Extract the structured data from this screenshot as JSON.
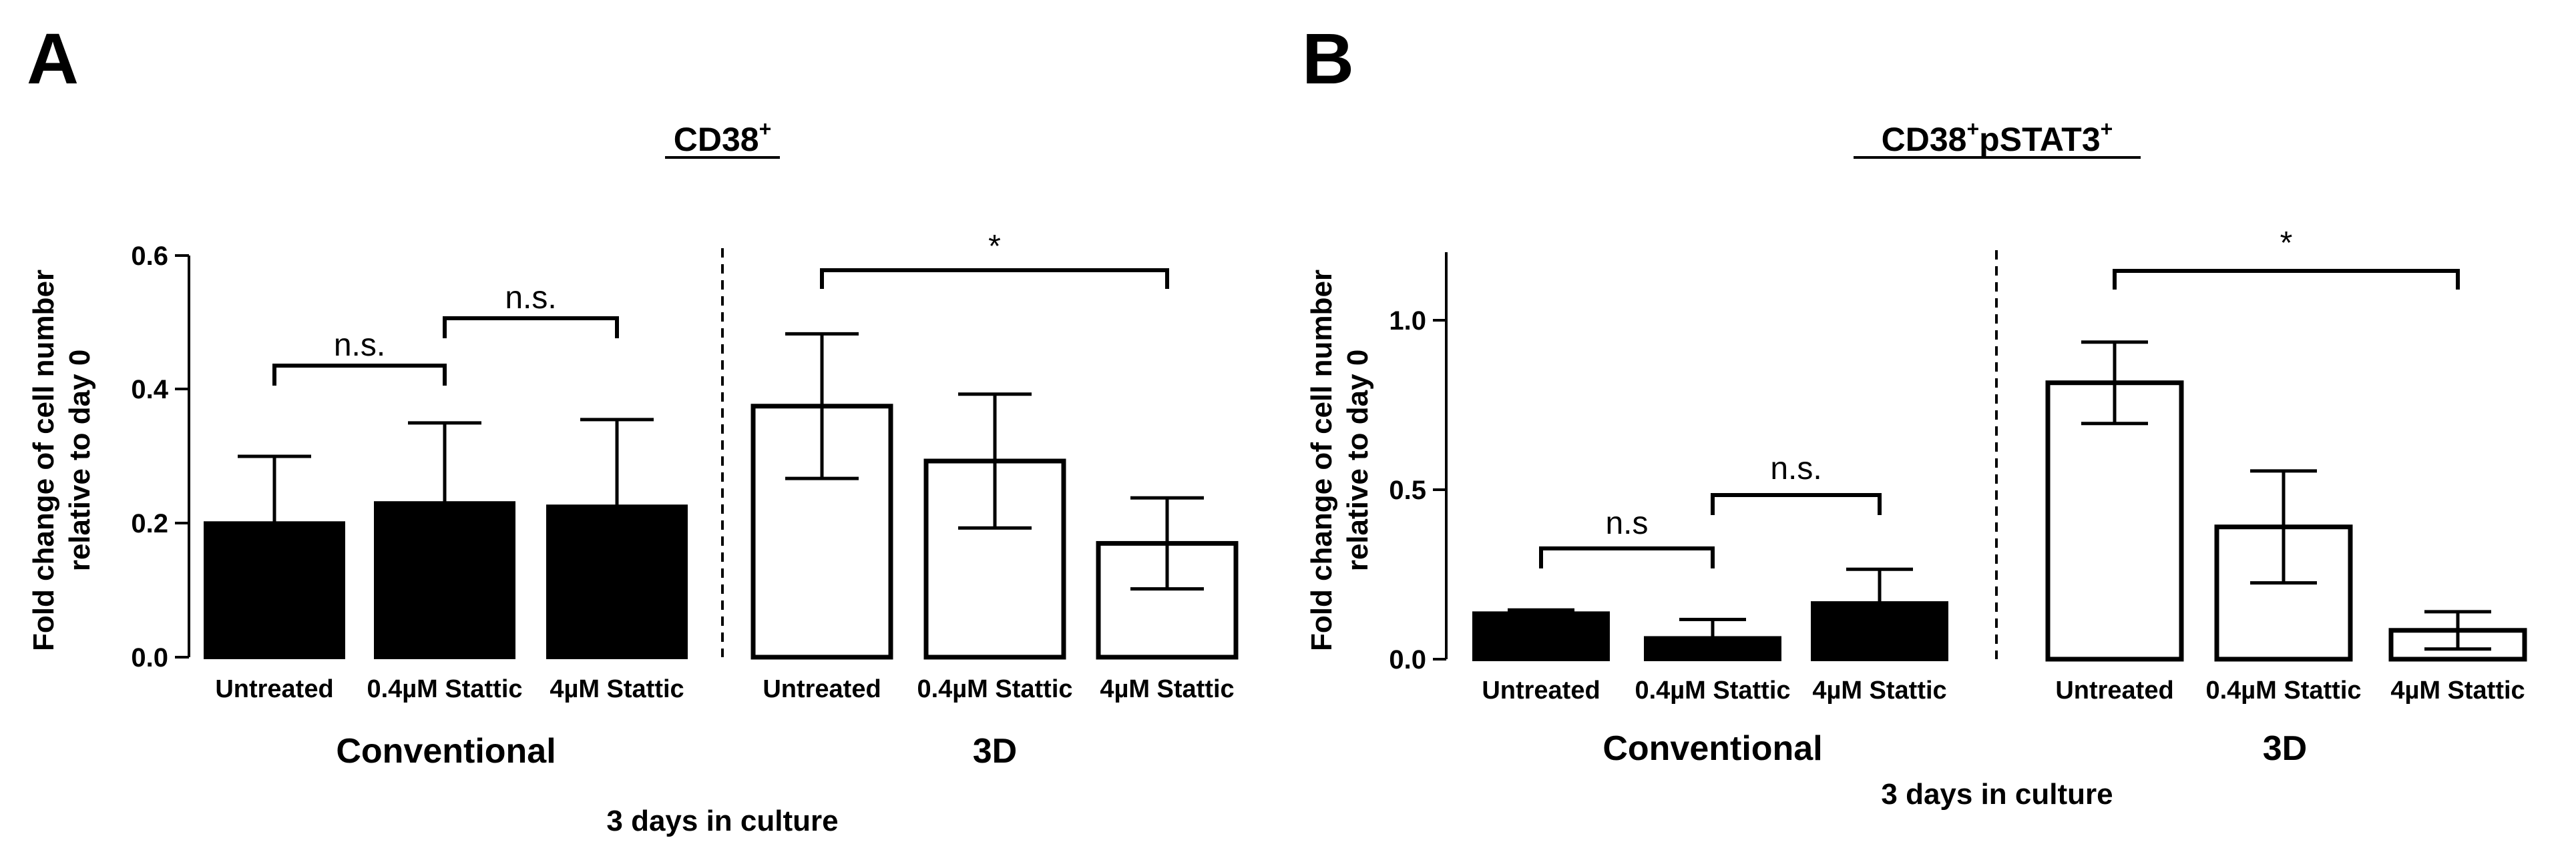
{
  "chart_data": [
    {
      "panel": "A",
      "type": "bar",
      "title": "CD38",
      "title_superscript": "+",
      "ylabel_line1": "Fold change of cell number",
      "ylabel_line2": "relative to day 0",
      "xlabel": "3 days in culture",
      "ylim": [
        0,
        0.6
      ],
      "yticks": [
        0.0,
        0.2,
        0.4,
        0.6
      ],
      "ytick_labels": [
        "0.0",
        "0.2",
        "0.4",
        "0.6"
      ],
      "groups": [
        {
          "label": "Conventional",
          "style": "filled",
          "categories": [
            "Untreated",
            "0.4µM Stattic",
            "4µM Stattic"
          ],
          "values": [
            0.2,
            0.23,
            0.225
          ],
          "errors": [
            0.1,
            0.12,
            0.13
          ],
          "error_direction": "up"
        },
        {
          "label": "3D",
          "style": "open",
          "categories": [
            "Untreated",
            "0.4µM Stattic",
            "4µM Stattic"
          ],
          "values": [
            0.375,
            0.293,
            0.17
          ],
          "errors": [
            0.108,
            0.1,
            0.068
          ],
          "error_direction": "both"
        }
      ],
      "annotations": [
        {
          "text": "n.s.",
          "from": 0,
          "to": 1
        },
        {
          "text": "n.s.",
          "from": 1,
          "to": 2
        },
        {
          "text": "*",
          "from": 3,
          "to": 5
        }
      ]
    },
    {
      "panel": "B",
      "type": "bar",
      "title": "CD38",
      "title_superscript": "+",
      "title_suffix": "pSTAT3",
      "title_suffix_superscript": "+",
      "ylabel_line1": "Fold change of cell number",
      "ylabel_line2": "relative to day 0",
      "xlabel": "3 days in culture",
      "ylim": [
        0,
        1.2
      ],
      "yticks": [
        0.0,
        0.5,
        1.0
      ],
      "ytick_labels": [
        "0.0",
        "0.5",
        "1.0"
      ],
      "groups": [
        {
          "label": "Conventional",
          "style": "filled",
          "categories": [
            "Untreated",
            "0.4µM Stattic",
            "4µM Stattic"
          ],
          "values": [
            0.135,
            0.062,
            0.165
          ],
          "errors": [
            0.01,
            0.055,
            0.1
          ],
          "error_direction": "up"
        },
        {
          "label": "3D",
          "style": "open",
          "categories": [
            "Untreated",
            "0.4µM Stattic",
            "4µM Stattic"
          ],
          "values": [
            0.815,
            0.39,
            0.085
          ],
          "errors": [
            0.12,
            0.165,
            0.055
          ],
          "error_direction": "both"
        }
      ],
      "annotations": [
        {
          "text": "n.s",
          "from": 0,
          "to": 1
        },
        {
          "text": "n.s.",
          "from": 1,
          "to": 2
        },
        {
          "text": "*",
          "from": 3,
          "to": 5
        }
      ]
    }
  ]
}
